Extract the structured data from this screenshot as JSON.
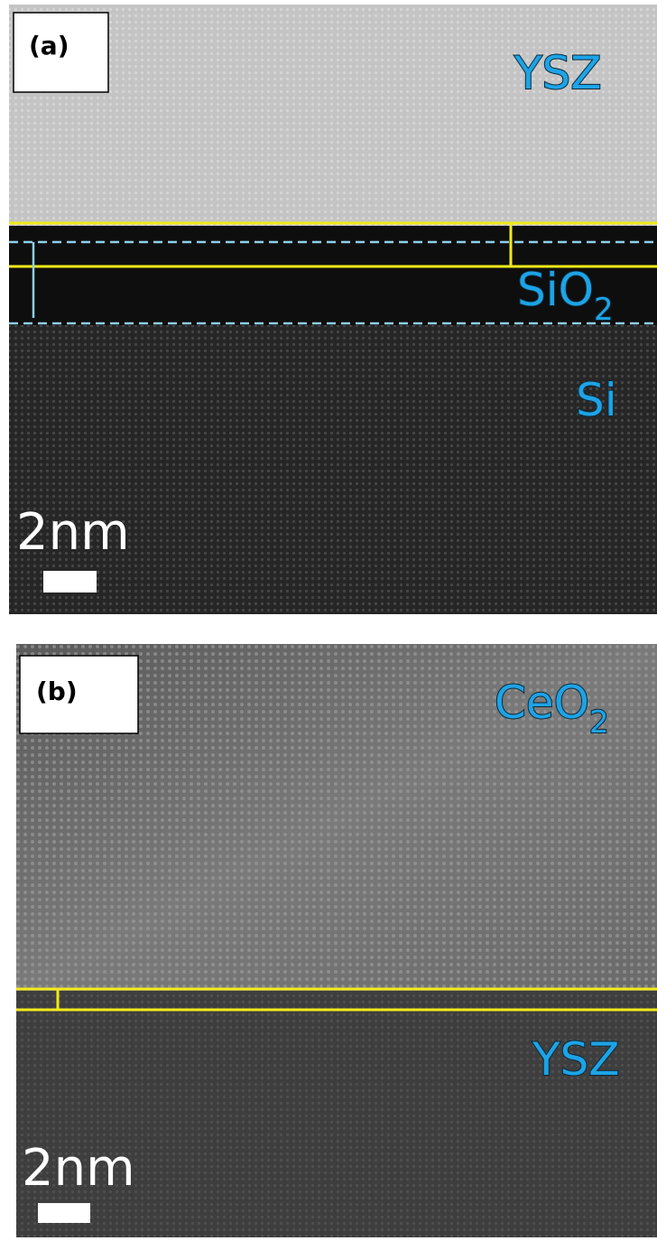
{
  "panels": [
    {
      "label": "(a)",
      "layers": [
        {
          "text": "YSZ"
        },
        {
          "text": "SiO",
          "sub": "2"
        },
        {
          "text": "Si"
        }
      ],
      "scale": "2nm"
    },
    {
      "label": "(b)",
      "layers": [
        {
          "text": "CeO",
          "sub": "2"
        },
        {
          "text": "YSZ"
        }
      ],
      "scale": "2nm"
    }
  ]
}
